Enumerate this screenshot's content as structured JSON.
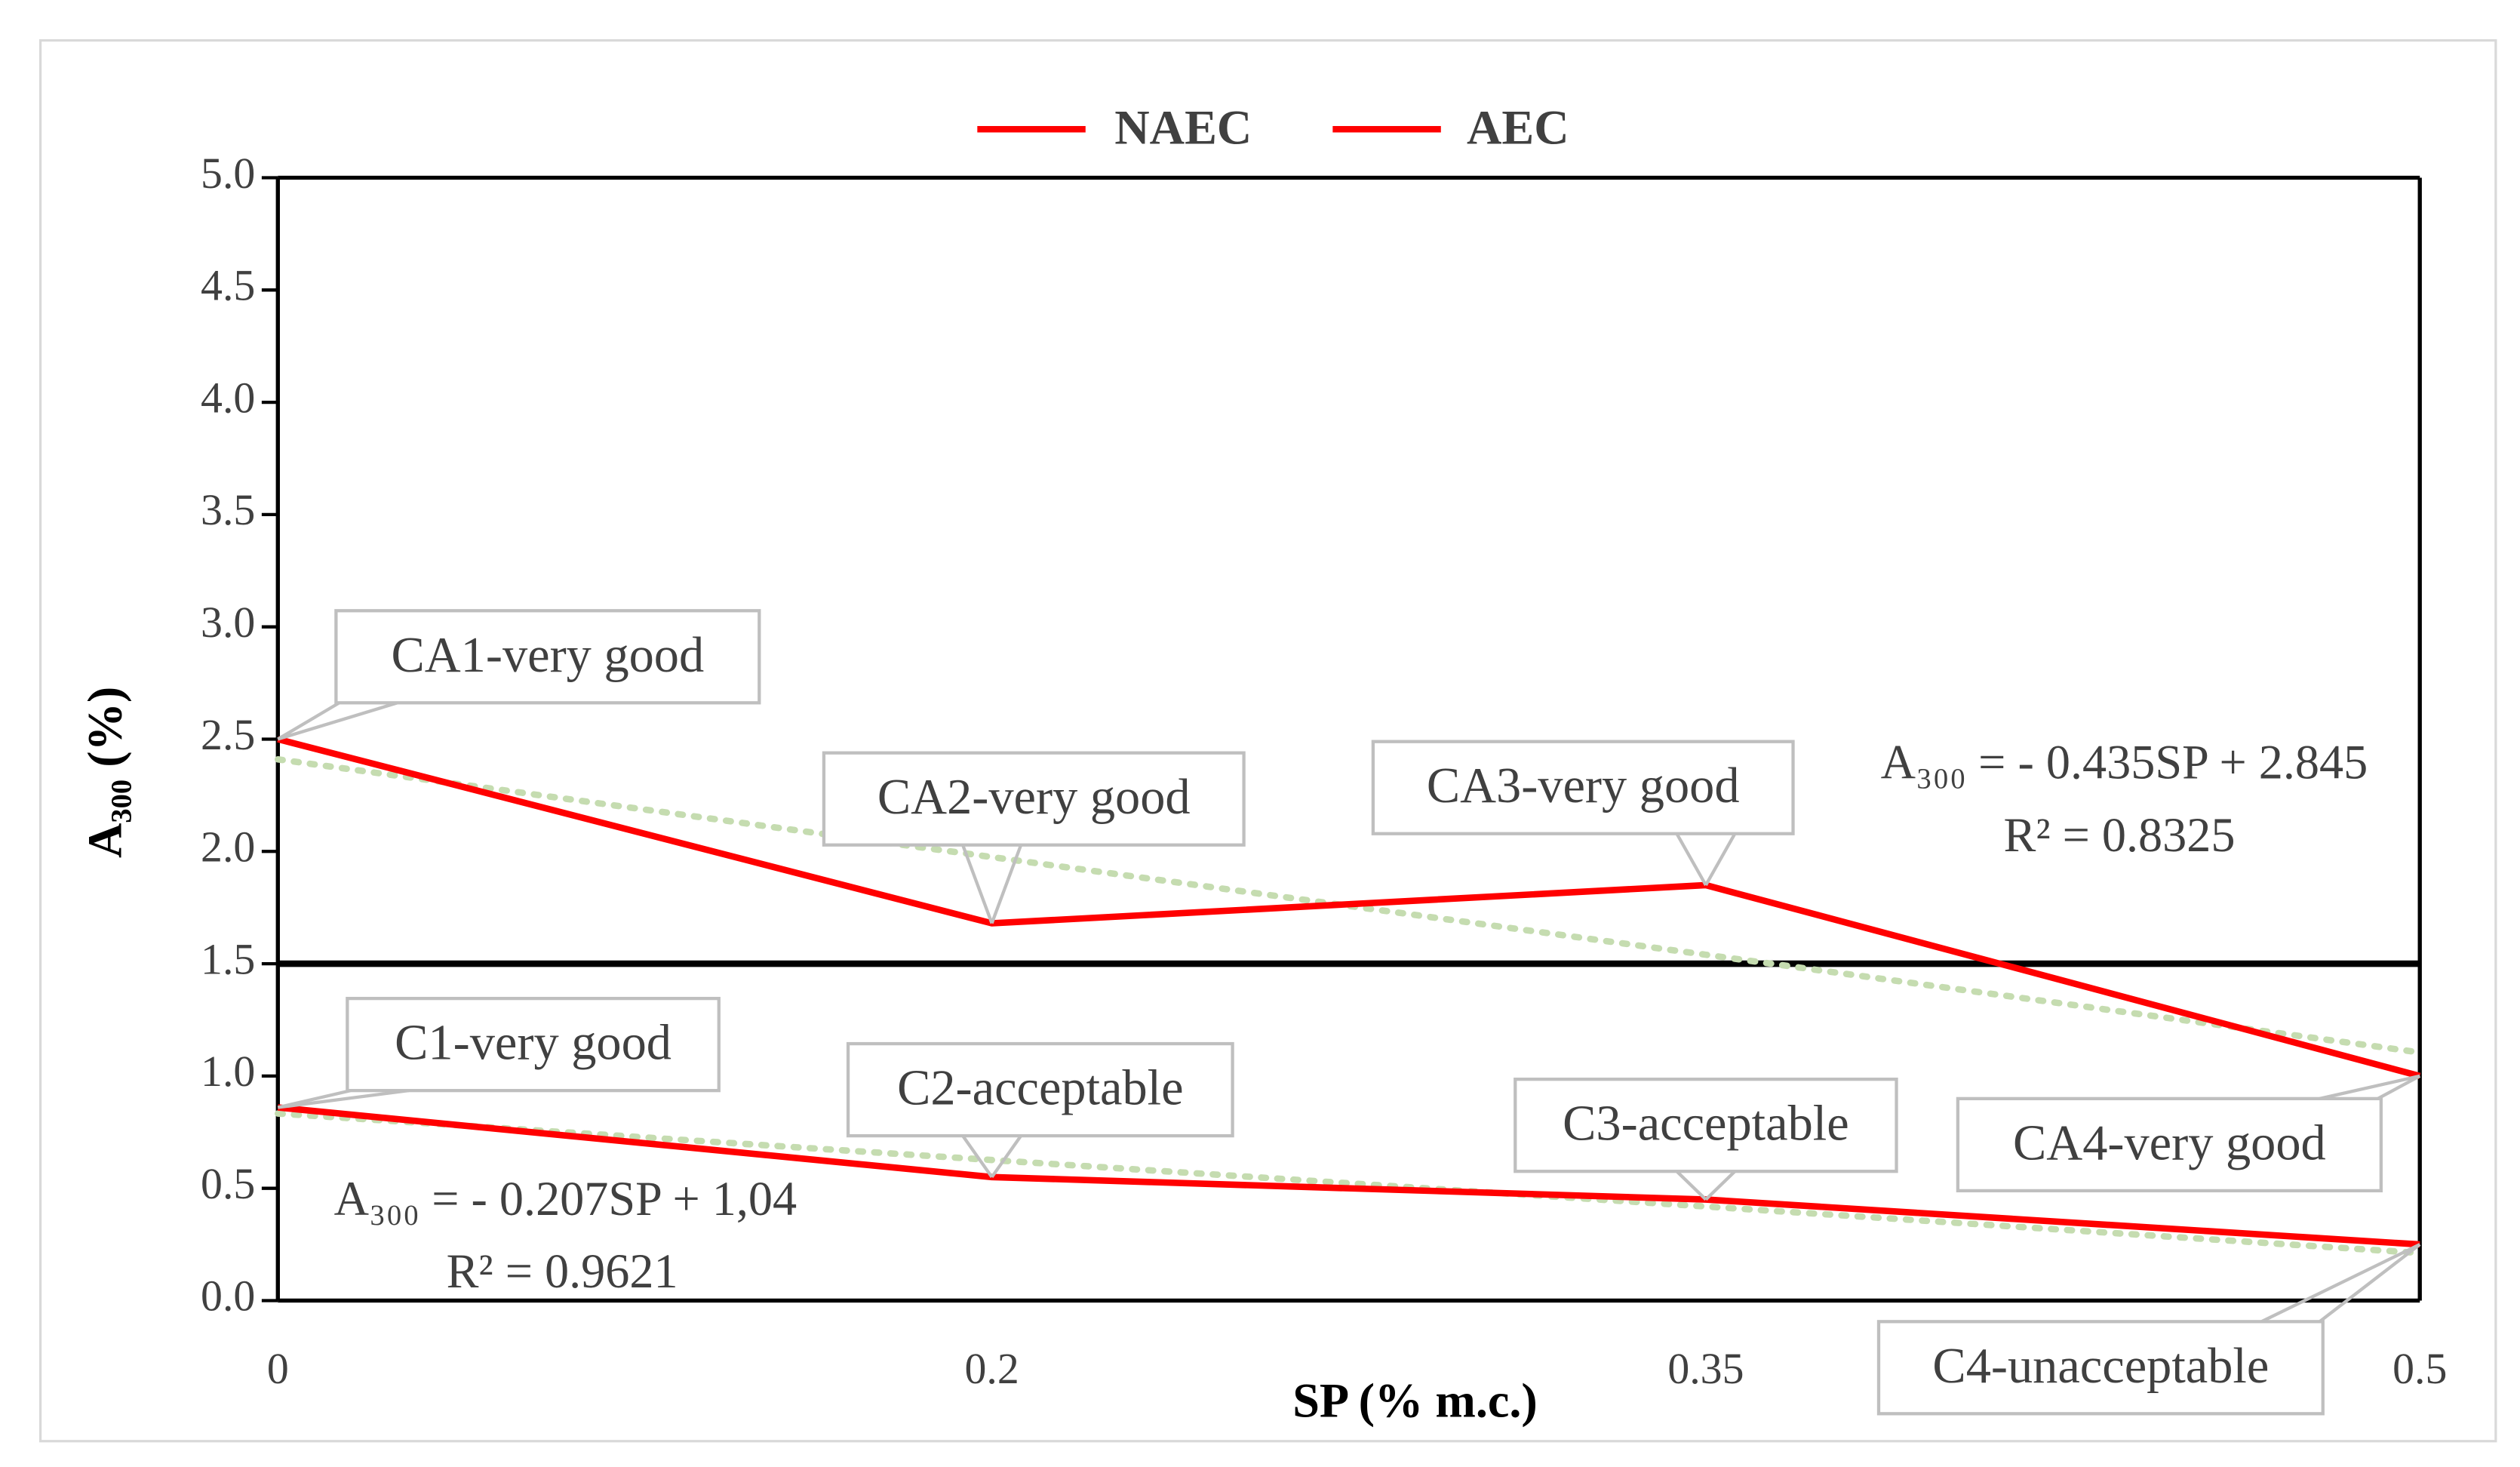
{
  "chart_data": {
    "type": "line",
    "x_label": "SP (% m.c.)",
    "y_label": "A₃₀₀ (%)",
    "categories": [
      "0",
      "0.2",
      "0.35",
      "0.5"
    ],
    "ylim": [
      0,
      5
    ],
    "yticks": [
      {
        "value": 0,
        "label": "0.0"
      },
      {
        "value": 0.5,
        "label": "0.5"
      },
      {
        "value": 1,
        "label": "1.0"
      },
      {
        "value": 1.5,
        "label": "1.5"
      },
      {
        "value": 2,
        "label": "2.0"
      },
      {
        "value": 2.5,
        "label": "2.5"
      },
      {
        "value": 3,
        "label": "3.0"
      },
      {
        "value": 3.5,
        "label": "3.5"
      },
      {
        "value": 4,
        "label": "4.0"
      },
      {
        "value": 4.5,
        "label": "4.5"
      },
      {
        "value": 5,
        "label": "5.0"
      }
    ],
    "reference_line": 1.5,
    "reference_color": "#000000",
    "trend_color": "#c5dcb0",
    "series": [
      {
        "name": "NAEC",
        "color": "#ff0000",
        "values": [
          0.86,
          0.55,
          0.45,
          0.25
        ],
        "trend": [
          0.833,
          0.626,
          0.419,
          0.212
        ],
        "point_labels": [
          "C1-very good",
          "C2-acceptable",
          "C3-acceptable",
          "C4-unacceptable"
        ],
        "equation": [
          "A₃₀₀ = - 0.207SP + 1,04",
          "R² = 0.9621"
        ]
      },
      {
        "name": "AEC",
        "color": "#ff0000",
        "values": [
          2.5,
          1.68,
          1.85,
          1.0
        ],
        "trend": [
          2.41,
          1.975,
          1.54,
          1.105
        ],
        "point_labels": [
          "CA1-very good",
          "CA2-very good",
          "CA3-very good",
          "CA4-very good"
        ],
        "equation": [
          "A₃₀₀ = - 0.435SP + 2.845",
          "R² = 0.8325"
        ]
      }
    ]
  }
}
